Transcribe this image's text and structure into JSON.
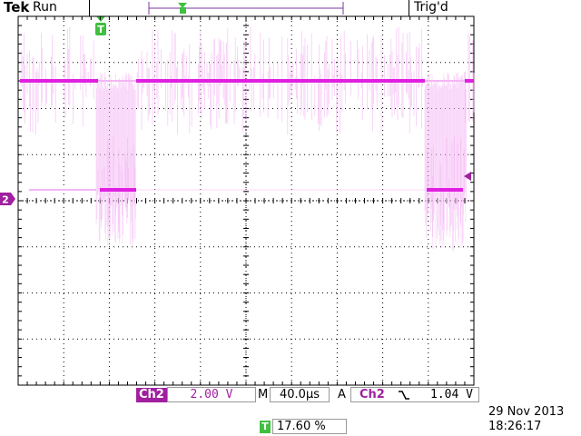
{
  "header": {
    "brand": "Tek",
    "run_state": "Run",
    "trigger_status": "Trig'd"
  },
  "trigger_marker": {
    "label": "T"
  },
  "channel_marker": {
    "label": "2"
  },
  "status_bar": {
    "channel_label": "Ch2",
    "volts_per_div": "2.00 V",
    "timebase_prefix": "M",
    "time_per_div": "40.0µs",
    "trigger_mode": "A",
    "trigger_source": "Ch2",
    "trigger_slope_icon": "falling-edge-icon",
    "trigger_level": "1.04 V",
    "trigger_position_badge": "T",
    "trigger_position": "17.60 %",
    "date": "29 Nov 2013",
    "time": "18:26:17"
  },
  "colors": {
    "trace": "#e020e0",
    "trace_faint": "#f4b6f4",
    "channel_marker": "#a020a0",
    "trigger_marker": "#40c040",
    "grid": "#000000"
  }
}
